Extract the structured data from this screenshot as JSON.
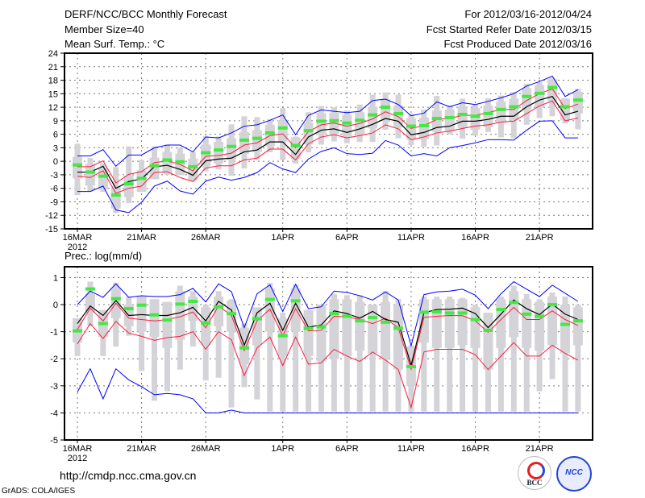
{
  "header": {
    "title": "DERF/NCC/BCC Monthly Forecast",
    "member_size": "Member Size=40",
    "variable": "Mean Surf. Temp.: °C",
    "period": "For 2012/03/16-2012/04/24",
    "started": "Fcst Started Refer Date 2012/03/15",
    "produced": "Fcst Produced Date 2012/03/16"
  },
  "footer": {
    "url": "http://cmdp.ncc.cma.gov.cn",
    "credit": "GrADS: COLA/IGES",
    "logo_bcc": "BCC",
    "logo_ncc": "NCC"
  },
  "colors": {
    "mean": "#000000",
    "spread": "#ff1a3c",
    "extreme": "#0000ff",
    "marker": "#44e844",
    "box": "#d4d4d8"
  },
  "chart_data": [
    {
      "type": "line",
      "title": "Mean Surf. Temp.: °C",
      "ylim": [
        -15,
        24
      ],
      "yticks": [
        24,
        21,
        18,
        15,
        12,
        9,
        6,
        3,
        0,
        -3,
        -6,
        -9,
        -12,
        -15
      ],
      "xtick_labels": [
        "16MAR",
        "21MAR",
        "26MAR",
        "1APR",
        "6APR",
        "11APR",
        "16APR",
        "21APR"
      ],
      "xtick_days": [
        0,
        5,
        10,
        16,
        21,
        26,
        31,
        36
      ],
      "year_label": "2012",
      "grid": true,
      "series": {
        "mean": [
          -2.4,
          -2.4,
          -1.1,
          -6,
          -4.5,
          -3.9,
          -1.2,
          -0.9,
          -1.8,
          -3.1,
          0.1,
          0.5,
          0.7,
          2.1,
          2.5,
          4.3,
          4.3,
          1.5,
          5.4,
          6.9,
          7.2,
          6.4,
          7.2,
          8.2,
          9.5,
          8.9,
          5.9,
          6.4,
          7.5,
          7.8,
          8.9,
          8.9,
          9.3,
          10,
          10,
          12.1,
          13.6,
          14.4,
          10.3,
          11.1
        ],
        "spread_high": [
          -1.2,
          -1.2,
          0.1,
          -4.8,
          -2.9,
          -2.3,
          -0.3,
          0.1,
          -0.7,
          -2.1,
          1.1,
          1.3,
          1.8,
          3.6,
          4.1,
          5.7,
          6.1,
          3,
          6.6,
          8.1,
          8.5,
          7.8,
          8.4,
          9.4,
          11,
          9.9,
          7.3,
          7.9,
          9.3,
          9.5,
          10.2,
          10.2,
          10.8,
          11.5,
          11.5,
          13.5,
          15,
          16.1,
          11.7,
          12.7
        ],
        "spread_low": [
          -3.3,
          -3.6,
          -2.1,
          -7.1,
          -6,
          -5.5,
          -2.5,
          -2.3,
          -3.6,
          -4.5,
          -1.5,
          -1,
          -1,
          0.3,
          0.7,
          2.7,
          2.7,
          0.3,
          3.9,
          5.4,
          5.9,
          5.2,
          5.7,
          6.3,
          8.1,
          7.2,
          4.8,
          5.4,
          6.3,
          6.7,
          7.3,
          7.8,
          8.1,
          8.7,
          8.9,
          10.6,
          12.3,
          13.4,
          9,
          9.6
        ],
        "max": [
          1.2,
          1.2,
          2.6,
          -1.1,
          1.4,
          1.4,
          3,
          3.6,
          3.6,
          2.1,
          5.4,
          5.2,
          6.3,
          7.8,
          8.1,
          9.1,
          10.3,
          5.9,
          10.2,
          11.4,
          11.1,
          10.8,
          11.1,
          13.5,
          13.8,
          12.6,
          10.1,
          10.7,
          13.2,
          12.1,
          13,
          12.6,
          13.3,
          14.1,
          15,
          16.7,
          17.7,
          18.9,
          14.4,
          15.9
        ],
        "min": [
          -6.7,
          -6.7,
          -5.5,
          -10.8,
          -11.4,
          -9.1,
          -5.5,
          -4.4,
          -6.6,
          -7.3,
          -4.4,
          -3.5,
          -4.2,
          -3.6,
          -2.5,
          -0.3,
          -1.7,
          -2.5,
          0.5,
          2.2,
          3,
          1.7,
          1.5,
          1.8,
          4.6,
          3.6,
          1.2,
          1.7,
          1.2,
          3,
          3.5,
          4.1,
          4.8,
          4.8,
          4.7,
          6.9,
          8.9,
          9,
          5.2,
          5.2
        ],
        "marker": [
          -0.8,
          -2.4,
          -3.3,
          -7.5,
          -5,
          -3.8,
          -1,
          0.3,
          -0.1,
          -1.2,
          1.9,
          2.5,
          3.3,
          4.7,
          5.1,
          6.3,
          7.4,
          3.5,
          6.8,
          8.9,
          9,
          8.5,
          9.1,
          10.3,
          12,
          10.6,
          7.8,
          7.9,
          9.5,
          9.7,
          10.4,
          10,
          10.6,
          11.5,
          12.1,
          14.4,
          15.1,
          16.4,
          12.1,
          13.6
        ],
        "whisker_high": [
          3.9,
          0.7,
          -0.5,
          -1.3,
          3.3,
          0.3,
          3.3,
          3.7,
          3,
          2.1,
          5.6,
          5.5,
          8.2,
          10,
          9.8,
          9.4,
          11.8,
          5.5,
          10.9,
          12.3,
          12,
          11.3,
          12.6,
          14.8,
          15.3,
          14.8,
          10.6,
          11.5,
          14.5,
          12.4,
          13.9,
          12.6,
          14,
          14.6,
          15.4,
          17.2,
          17.5,
          18.5,
          14,
          16.1
        ],
        "whisker_low": [
          -7.5,
          -6.7,
          -6.8,
          -11.5,
          -9.3,
          -6.5,
          -3.2,
          -3,
          -2.5,
          -4.5,
          -2.2,
          -1.8,
          -3.2,
          -1.6,
          0.4,
          2,
          0.3,
          -0.5,
          2,
          3.7,
          4.4,
          4,
          4.3,
          4.3,
          7,
          5.1,
          3.6,
          3.2,
          3.5,
          6,
          5,
          5.7,
          6.5,
          5.3,
          5.1,
          8.1,
          9.6,
          10,
          8.4,
          7.1
        ],
        "box_high": [
          1,
          -0.6,
          -1.5,
          -5.7,
          -3.2,
          -2,
          0.8,
          2.1,
          1.7,
          0.6,
          3.7,
          4.3,
          5.1,
          6.5,
          6.9,
          8.1,
          9.2,
          5.3,
          8.6,
          10.7,
          10.8,
          10.3,
          10.9,
          12.1,
          13.8,
          12.4,
          9.6,
          9.7,
          11.3,
          11.5,
          12.2,
          11.8,
          12.4,
          13.3,
          13.9,
          16.2,
          16.9,
          18.2,
          13.9,
          15.4
        ],
        "box_low": [
          -3.8,
          -5.4,
          -6.3,
          -10.5,
          -8,
          -6.8,
          -4,
          -2.7,
          -3.1,
          -4.2,
          -1.1,
          -0.5,
          0.3,
          1.7,
          2.1,
          3.3,
          4.4,
          0.5,
          3.8,
          5.9,
          6,
          5.5,
          6.1,
          7.3,
          9,
          7.6,
          4.8,
          4.9,
          6.5,
          6.7,
          7.4,
          7,
          7.6,
          8.5,
          9.1,
          11.4,
          12.1,
          13.4,
          9.1,
          10.6
        ]
      }
    },
    {
      "type": "line",
      "title": "Prec.: log(mm/d)",
      "ylim": [
        -5,
        1.4
      ],
      "yticks": [
        1,
        0,
        -1,
        -2,
        -3,
        -4,
        -5
      ],
      "xtick_labels": [
        "16MAR",
        "21MAR",
        "26MAR",
        "1APR",
        "6APR",
        "11APR",
        "16APR",
        "21APR"
      ],
      "xtick_days": [
        0,
        5,
        10,
        16,
        21,
        26,
        31,
        36
      ],
      "year_label": "2012",
      "grid": true,
      "series": {
        "mean": [
          -0.7,
          -0.05,
          -0.4,
          0.15,
          -0.4,
          -0.37,
          -0.4,
          -0.4,
          -0.3,
          -0.1,
          -0.6,
          0.12,
          -0.2,
          -1.5,
          -0.3,
          0.05,
          -0.95,
          0.05,
          -0.83,
          -0.75,
          -0.23,
          -0.33,
          -0.5,
          -0.25,
          -0.55,
          -0.65,
          -2.24,
          -0.3,
          -0.18,
          -0.17,
          -0.13,
          -0.33,
          -0.85,
          -0.35,
          0.17,
          -0.15,
          -0.37,
          0.02,
          -0.35,
          -0.55
        ],
        "spread_high": [
          -0.92,
          -0.13,
          -0.6,
          0.05,
          -0.5,
          -0.55,
          -0.6,
          -0.55,
          -0.45,
          -0.27,
          -0.85,
          -0.05,
          -0.4,
          -1.7,
          -0.6,
          -0.17,
          -1.15,
          -0.15,
          -0.97,
          -0.95,
          -0.43,
          -0.45,
          -0.55,
          -0.7,
          -0.5,
          -0.86,
          -2.39,
          -0.47,
          -0.43,
          -0.4,
          -0.41,
          -0.6,
          -1.02,
          -0.55,
          -0.1,
          -0.55,
          -0.55,
          -0.23,
          -0.55,
          -0.77
        ],
        "spread_low": [
          -1.45,
          -0.7,
          -1.25,
          -0.62,
          -1.05,
          -1.17,
          -1.32,
          -1.22,
          -1.17,
          -1,
          -1.65,
          -1,
          -1.3,
          -2.62,
          -1.6,
          -1.2,
          -2.25,
          -1.2,
          -2.2,
          -2.15,
          -1.65,
          -1.9,
          -2.1,
          -1.75,
          -2.05,
          -2.4,
          -3.8,
          -1.75,
          -1.65,
          -1.65,
          -1.65,
          -1.85,
          -2.4,
          -1.9,
          -1.4,
          -1.9,
          -1.9,
          -1.5,
          -1.8,
          -2.05
        ],
        "max": [
          0,
          0.5,
          0.27,
          0.77,
          0.27,
          0.33,
          0.3,
          0.3,
          0.37,
          0.6,
          0.1,
          0.77,
          0.48,
          -0.85,
          0.4,
          0.73,
          -0.25,
          0.75,
          -0.15,
          -0.08,
          0.5,
          0.45,
          0.33,
          0.17,
          0.47,
          0.17,
          -1.52,
          0.37,
          0.47,
          0.5,
          0.57,
          0.35,
          -0.15,
          0.4,
          0.85,
          0.57,
          0.3,
          0.72,
          0.42,
          0.12
        ],
        "min": [
          -3.23,
          -2.37,
          -3.48,
          -2.37,
          -2.78,
          -3.03,
          -3.33,
          -3.28,
          -3.33,
          -3.48,
          -4,
          -4,
          -3.9,
          -4,
          -4,
          -4,
          -4,
          -4,
          -4,
          -4,
          -4,
          -4,
          -4,
          -4,
          -4,
          -4,
          -4,
          -4,
          -4,
          -4,
          -4,
          -4,
          -4,
          -4,
          -4,
          -4,
          -4,
          -4,
          -4,
          -4
        ],
        "marker": [
          -0.97,
          0.58,
          -0.7,
          0.22,
          -0.15,
          -0.02,
          -0.38,
          -0.57,
          0.02,
          0.12,
          -0.68,
          -0.08,
          -0.33,
          -1.6,
          -0.52,
          0.19,
          -1.15,
          0.14,
          -0.88,
          -0.82,
          -0.33,
          -0.43,
          -0.6,
          -0.48,
          -0.65,
          -0.87,
          -2.29,
          -0.28,
          -0.27,
          -0.31,
          -0.31,
          -0.55,
          -0.95,
          -0.18,
          0.08,
          -0.35,
          -0.43,
          0,
          -0.73,
          -0.6
        ],
        "whisker_high": [
          -0.5,
          0.85,
          -0.2,
          0.8,
          0.3,
          0.3,
          0.2,
          0.1,
          0.7,
          0.5,
          0,
          0.5,
          0.2,
          -0.7,
          -0.1,
          0.8,
          -0.3,
          0.75,
          -0.2,
          0,
          0.4,
          0.35,
          0.35,
          0,
          0.5,
          0.2,
          -1.5,
          0.3,
          0.3,
          0.3,
          0.25,
          0,
          -0.3,
          0.3,
          0.7,
          0.4,
          0.2,
          0.45,
          0.3,
          0
        ],
        "whisker_low": [
          -1.9,
          -0.8,
          -1.9,
          -1.55,
          -1.15,
          -2.45,
          -3.55,
          -3.2,
          -2.4,
          -1.55,
          -2.8,
          -2.7,
          -3.8,
          -3.05,
          -3.5,
          -3.95,
          -3.95,
          -3.95,
          -3.95,
          -3.95,
          -3.95,
          -3.95,
          -3.95,
          -3.95,
          -3.95,
          -3.95,
          -3.95,
          -3.95,
          -3.95,
          -3.95,
          -3.95,
          -3.95,
          -3.95,
          -3.95,
          -3.95,
          -3.95,
          -3.2,
          -2.75,
          -3.95,
          -3.95
        ],
        "box_high": [
          -0.5,
          0.4,
          -0.2,
          0.6,
          0,
          0.3,
          0.2,
          0.1,
          0.5,
          0.3,
          -0.1,
          0.3,
          0.15,
          -0.85,
          -0.1,
          0.6,
          -0.5,
          0.6,
          -0.2,
          0,
          0.2,
          0.2,
          0.1,
          0,
          0.1,
          0,
          -1.55,
          0.2,
          0.2,
          0.2,
          0.2,
          -0.1,
          -0.3,
          0.2,
          0.5,
          0.2,
          0.1,
          0.3,
          0,
          -0.1
        ],
        "box_low": [
          -1.4,
          -0.3,
          -1.2,
          -0.5,
          -0.8,
          -1,
          -1.2,
          -1.6,
          -1.3,
          -0.6,
          -1.5,
          -0.8,
          -1,
          -2.2,
          -1.5,
          -1,
          -1.9,
          -1,
          -1.9,
          -2.1,
          -2,
          -1.9,
          -1.7,
          -1.8,
          -2,
          -2.4,
          -3,
          -1.4,
          -1.6,
          -1.6,
          -1.5,
          -1.6,
          -2.4,
          -1.6,
          -1.2,
          -1.6,
          -1.7,
          -1.5,
          -1.8,
          -1.5
        ]
      }
    }
  ]
}
